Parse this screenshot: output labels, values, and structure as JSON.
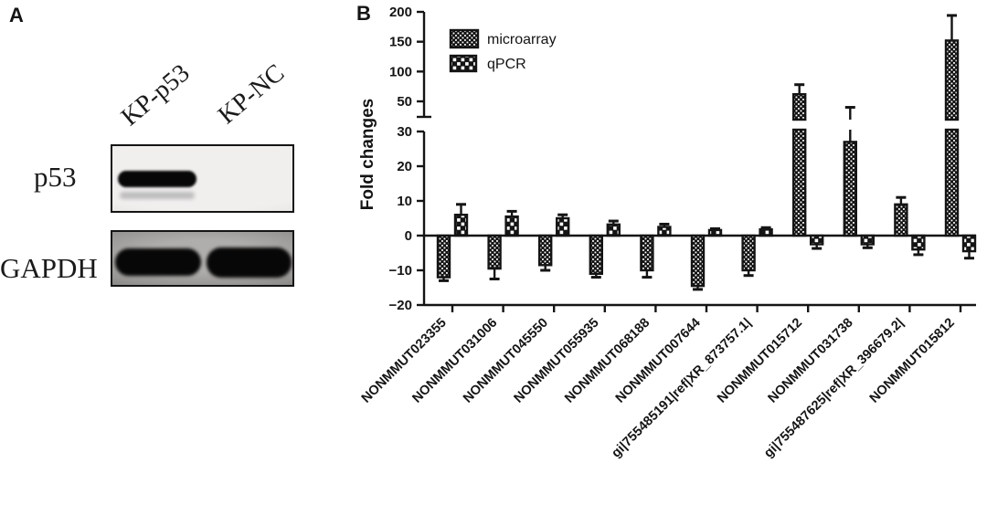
{
  "colors": {
    "ink": "#141414"
  },
  "figure": {
    "panel_a": {
      "label": "A",
      "lane_labels": [
        "KP-p53",
        "KP-NC"
      ],
      "row_labels": [
        "p53",
        "GAPDH"
      ]
    },
    "panel_b": {
      "label": "B",
      "chart_data": {
        "type": "bar",
        "title": "",
        "xlabel": "",
        "ylabel": "Fold changes",
        "legend_position": "upper-left-inside",
        "grid": false,
        "broken_y_axis": {
          "upper_ticks": [
            50,
            100,
            150,
            200
          ],
          "lower_ticks": [
            -20,
            -10,
            0,
            10,
            20,
            30
          ],
          "upper_range": [
            40,
            200
          ],
          "lower_range": [
            -20,
            30
          ]
        },
        "categories": [
          "NONMMUT023355",
          "NONMMUT031006",
          "NONMMUT045550",
          "NONMMUT055935",
          "NONMMUT068188",
          "NONMMUT007644",
          "gi|755485191|ref|XR_873757.1|",
          "NONMMUT015712",
          "NONMMUT031738",
          "gi|755487625|ref|XR_396679.2|",
          "NONMMUT015812"
        ],
        "series": [
          {
            "name": "microarray",
            "pattern": "fine-checker",
            "values": [
              -12,
              -9.5,
              -8.5,
              -11,
              -10,
              -14.5,
              -10,
              62,
              27,
              9,
              152
            ],
            "errors": [
              1,
              3,
              1.5,
              1,
              2,
              1,
              1.5,
              16,
              13,
              2,
              42
            ]
          },
          {
            "name": "qPCR",
            "pattern": "coarse-checker",
            "values": [
              6,
              5.5,
              5,
              3.2,
              2.5,
              1.6,
              1.8,
              -2.5,
              -2.5,
              -4,
              -4.5
            ],
            "errors": [
              3,
              1.5,
              1,
              1,
              0.8,
              0.4,
              0.5,
              1.2,
              1,
              1.5,
              2
            ]
          }
        ]
      }
    }
  }
}
